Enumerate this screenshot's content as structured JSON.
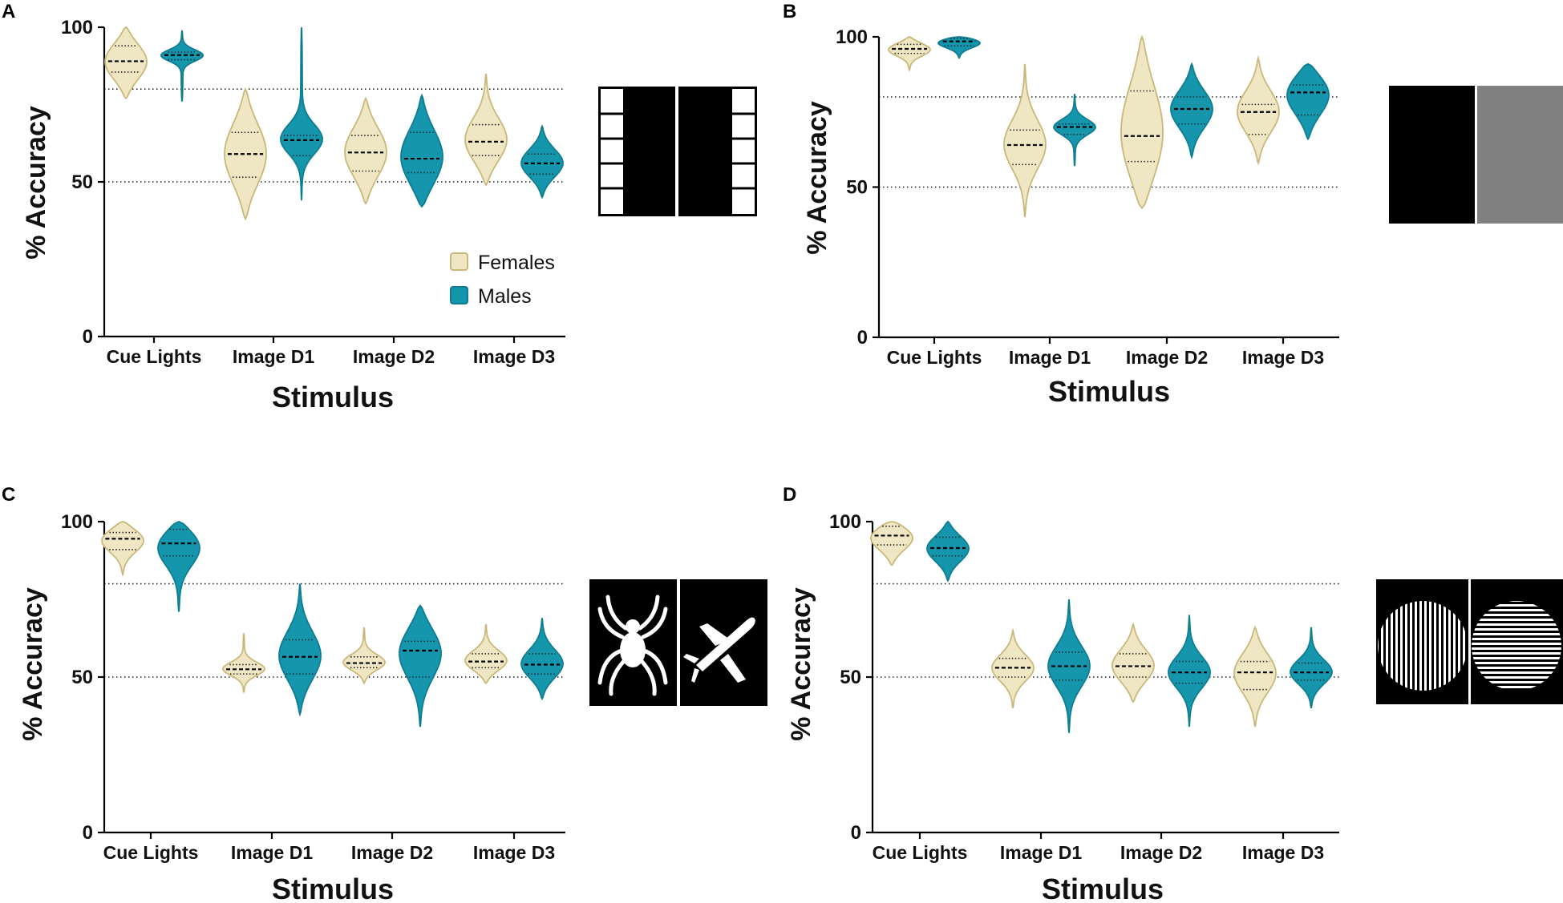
{
  "colors": {
    "females": "#efe7c3",
    "females_edge": "#c9b87a",
    "males": "#1696ad",
    "males_edge": "#0f7d91",
    "axis": "#000000"
  },
  "legend": {
    "females": "Females",
    "males": "Males"
  },
  "chart_data": [
    {
      "panel": "A",
      "type": "violin",
      "title": "",
      "xlabel": "Stimulus",
      "ylabel": "% Accuracy",
      "ylim": [
        0,
        100
      ],
      "yticks": [
        "0",
        "50",
        "100"
      ],
      "reference_lines": [
        50,
        80
      ],
      "categories": [
        "Cue Lights",
        "Image D1",
        "Image D2",
        "Image D3"
      ],
      "stimulus_icon": "black-white-grid-panels",
      "series": [
        {
          "name": "Females",
          "median": [
            89,
            59,
            59.5,
            63
          ],
          "q1": [
            85.5,
            51.5,
            53.5,
            58.5
          ],
          "q3": [
            94,
            66,
            65,
            68.5
          ],
          "min": [
            77,
            38,
            43,
            49
          ],
          "max": [
            100,
            80,
            77,
            85
          ]
        },
        {
          "name": "Males",
          "median": [
            91,
            63.5,
            57.5,
            56
          ],
          "q1": [
            89.5,
            58.5,
            53,
            52.5
          ],
          "q3": [
            92,
            65,
            66,
            59
          ],
          "min": [
            76,
            44,
            42,
            45
          ],
          "max": [
            99,
            100,
            78,
            68
          ]
        }
      ]
    },
    {
      "panel": "B",
      "type": "violin",
      "title": "",
      "xlabel": "Stimulus",
      "ylabel": "% Accuracy",
      "ylim": [
        0,
        100
      ],
      "yticks": [
        "0",
        "50",
        "100"
      ],
      "reference_lines": [
        50,
        80
      ],
      "categories": [
        "Cue Lights",
        "Image D1",
        "Image D2",
        "Image D3"
      ],
      "stimulus_icon": "black-gray-panels",
      "series": [
        {
          "name": "Females",
          "median": [
            96,
            64,
            67,
            75
          ],
          "q1": [
            94.5,
            57.5,
            58.5,
            67.5
          ],
          "q3": [
            97.5,
            69,
            82,
            77.5
          ],
          "min": [
            89,
            40,
            43,
            58
          ],
          "max": [
            100,
            91,
            100,
            93
          ]
        },
        {
          "name": "Males",
          "median": [
            98.5,
            70,
            76,
            81.5
          ],
          "q1": [
            97,
            67.5,
            71,
            74
          ],
          "q3": [
            99.5,
            71,
            80,
            84
          ],
          "min": [
            93,
            57,
            60,
            66
          ],
          "max": [
            100,
            81,
            91,
            91
          ]
        }
      ]
    },
    {
      "panel": "C",
      "type": "violin",
      "title": "",
      "xlabel": "Stimulus",
      "ylabel": "% Accuracy",
      "ylim": [
        0,
        100
      ],
      "yticks": [
        "0",
        "50",
        "100"
      ],
      "reference_lines": [
        50,
        80
      ],
      "categories": [
        "Cue Lights",
        "Image D1",
        "Image D2",
        "Image D3"
      ],
      "stimulus_icon": "spider-airplane-panels",
      "series": [
        {
          "name": "Females",
          "median": [
            94.5,
            52.5,
            54.5,
            55
          ],
          "q1": [
            91,
            51,
            53,
            53
          ],
          "q3": [
            96.5,
            54,
            56.5,
            57.5
          ],
          "min": [
            83,
            45,
            48,
            48
          ],
          "max": [
            100,
            64,
            66,
            67
          ]
        },
        {
          "name": "Males",
          "median": [
            93,
            56.5,
            58.5,
            54
          ],
          "q1": [
            89,
            51,
            50,
            51
          ],
          "q3": [
            97.5,
            62,
            61.5,
            57.5
          ],
          "min": [
            71,
            38,
            34,
            43
          ],
          "max": [
            100,
            80,
            73,
            69
          ]
        }
      ]
    },
    {
      "panel": "D",
      "type": "violin",
      "title": "",
      "xlabel": "Stimulus",
      "ylabel": "% Accuracy",
      "ylim": [
        0,
        100
      ],
      "yticks": [
        "0",
        "50",
        "100"
      ],
      "reference_lines": [
        50,
        80
      ],
      "categories": [
        "Cue Lights",
        "Image D1",
        "Image D2",
        "Image D3"
      ],
      "stimulus_icon": "grating-discs-panels",
      "series": [
        {
          "name": "Females",
          "median": [
            95.5,
            53,
            53.5,
            51.5
          ],
          "q1": [
            92.5,
            50,
            50,
            46
          ],
          "q3": [
            98.5,
            56,
            57.5,
            55
          ],
          "min": [
            86,
            40,
            42,
            34
          ],
          "max": [
            100,
            65,
            67,
            66
          ]
        },
        {
          "name": "Males",
          "median": [
            91.5,
            53.5,
            51.5,
            51.5
          ],
          "q1": [
            89,
            49,
            48,
            49
          ],
          "q3": [
            95,
            58,
            55,
            54.5
          ],
          "min": [
            81,
            32,
            34,
            40
          ],
          "max": [
            100,
            75,
            70,
            66
          ]
        }
      ]
    }
  ]
}
